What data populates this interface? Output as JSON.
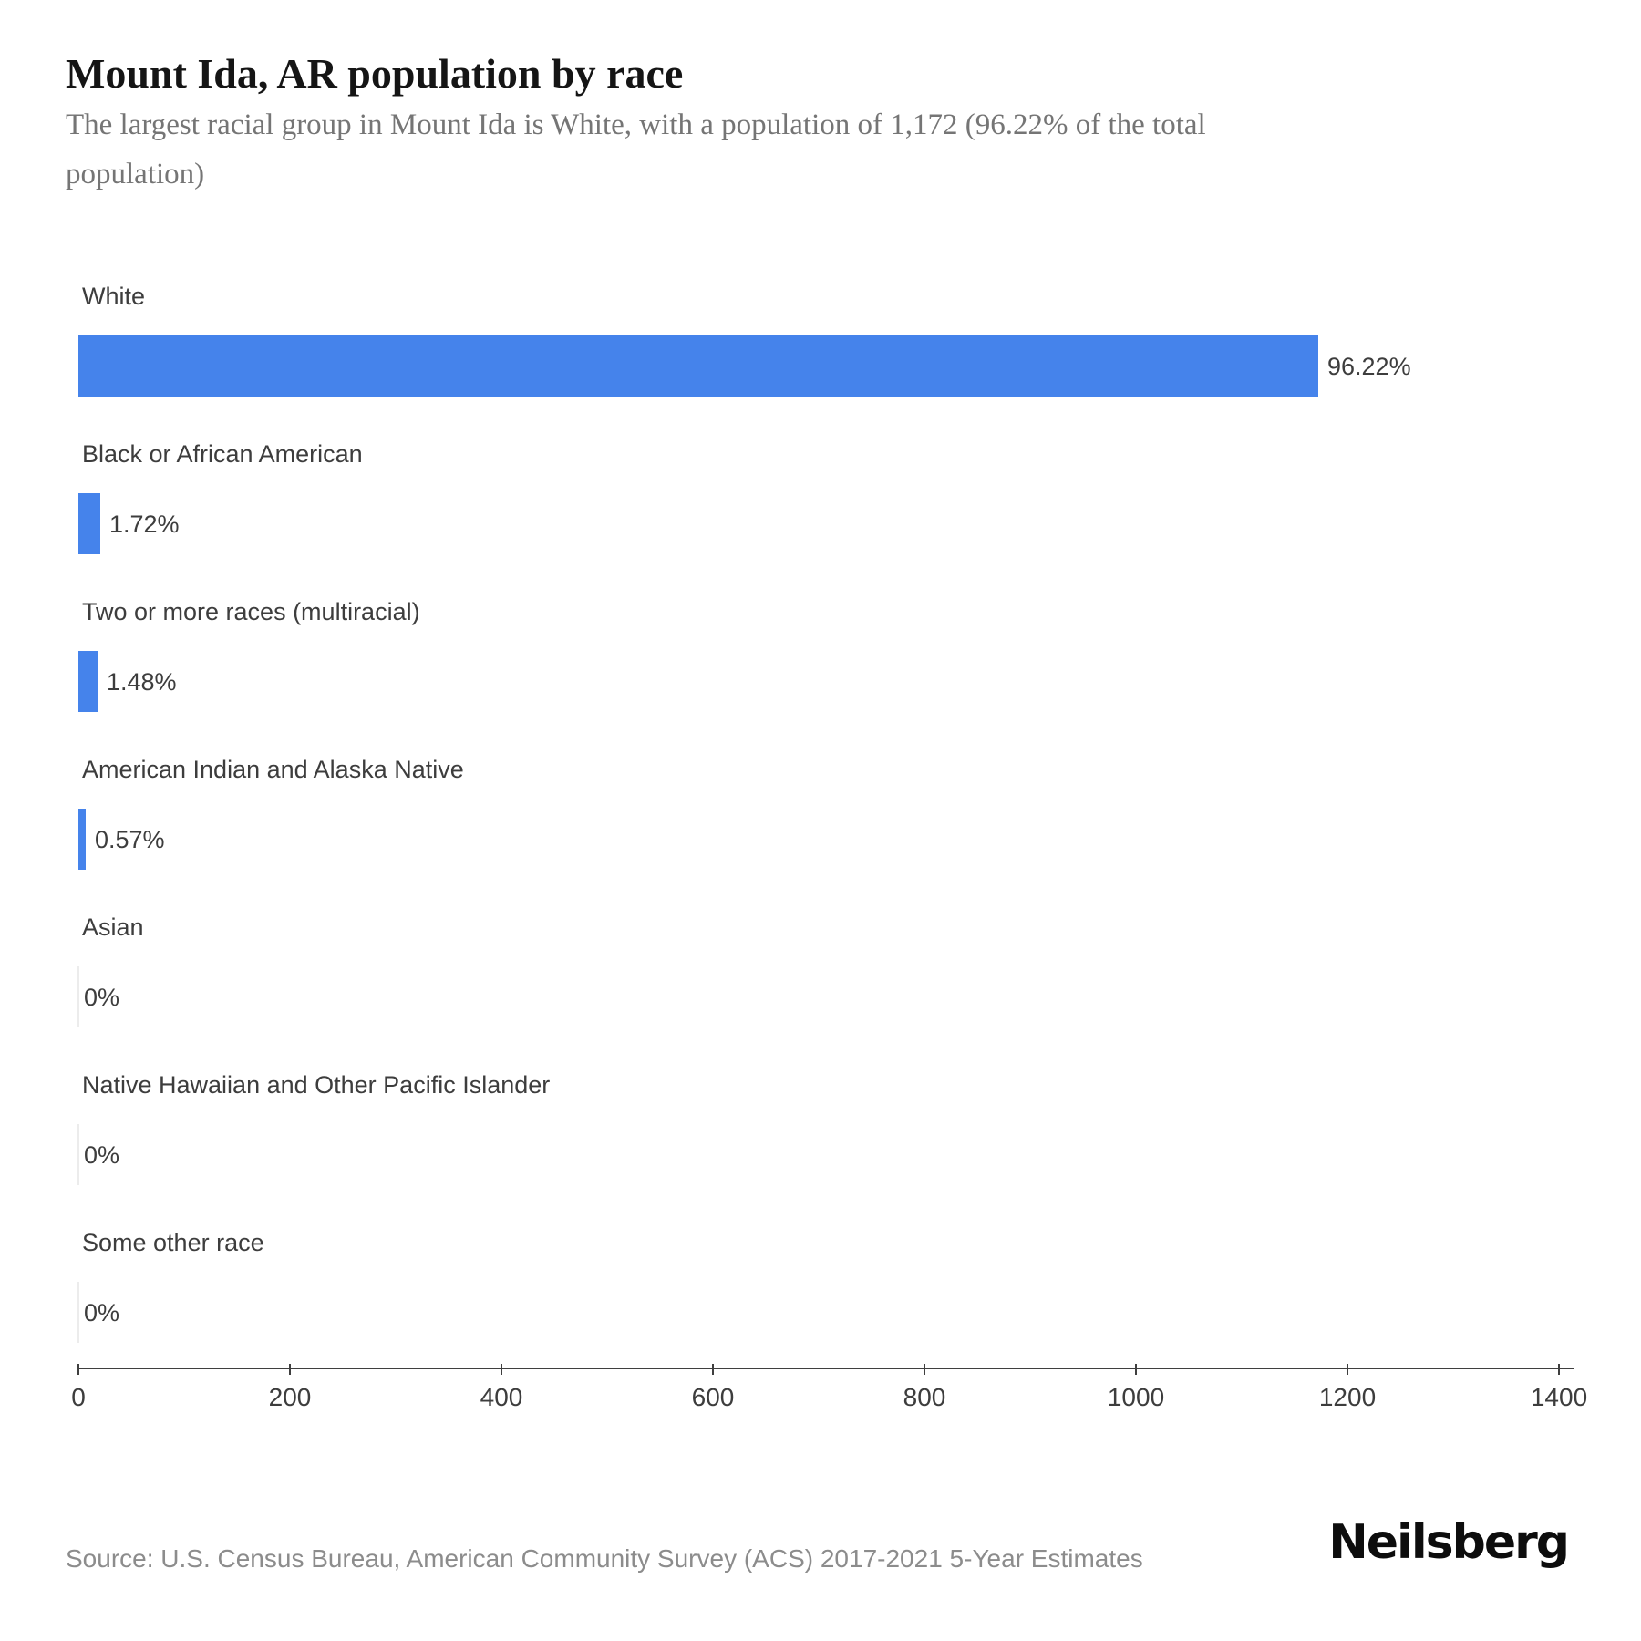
{
  "header": {
    "title": "Mount Ida, AR population by race",
    "subtitle_lines": [
      "The largest racial group in Mount Ida is White, with a population of 1,172 (96.22% of the total",
      "population)"
    ]
  },
  "chart_data": {
    "type": "bar",
    "orientation": "horizontal",
    "title": "Mount Ida, AR population by race",
    "categories": [
      "White",
      "Black or African American",
      "Two or more races (multiracial)",
      "American Indian and Alaska Native",
      "Asian",
      "Native Hawaiian and Other Pacific Islander",
      "Some other race"
    ],
    "percent_labels": [
      "96.22%",
      "1.72%",
      "1.48%",
      "0.57%",
      "0%",
      "0%",
      "0%"
    ],
    "percent_values": [
      96.22,
      1.72,
      1.48,
      0.57,
      0,
      0,
      0
    ],
    "values_population_est": [
      1172,
      21,
      18,
      7,
      0,
      0,
      0
    ],
    "xlabel": "",
    "ylabel": "",
    "xlim": [
      0,
      1400
    ],
    "x_ticks": [
      0,
      200,
      400,
      600,
      800,
      1000,
      1200,
      1400
    ],
    "grid": false,
    "legend": false,
    "bar_color": "#4583eb",
    "zero_bar_color": "#ececec",
    "highlight_value_note": "White population 1,172 (96.22%)"
  },
  "footer": {
    "source": "Source: U.S. Census Bureau, American Community Survey (ACS) 2017-2021 5-Year Estimates",
    "logo": "Neilsberg"
  }
}
